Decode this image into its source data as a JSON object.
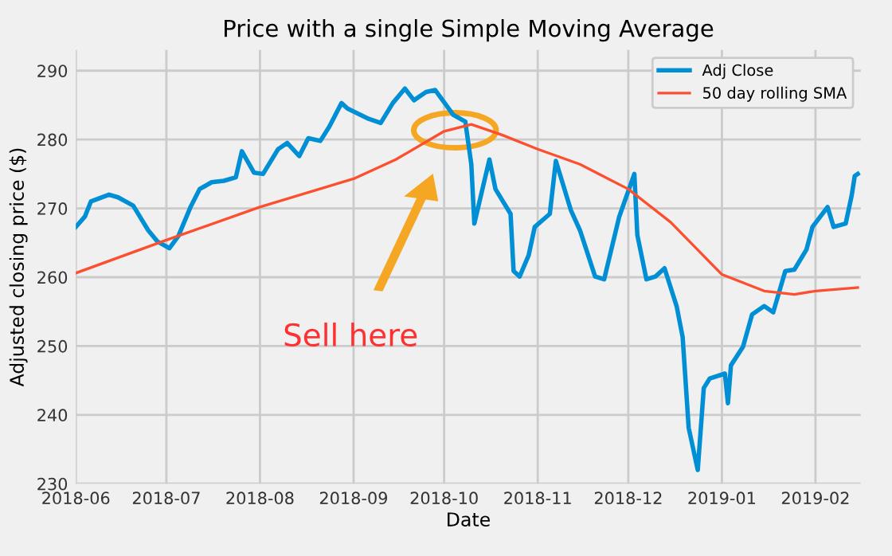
{
  "chart_data": {
    "type": "line",
    "title": "Price with a single Simple Moving Average",
    "xlabel": "Date",
    "ylabel": "Adjusted closing price ($)",
    "xlim": [
      "2018-06-01",
      "2019-02-16"
    ],
    "xticks": [
      {
        "value": "2018-06-01",
        "label": "2018-06"
      },
      {
        "value": "2018-07-01",
        "label": "2018-07"
      },
      {
        "value": "2018-08-01",
        "label": "2018-08"
      },
      {
        "value": "2018-09-01",
        "label": "2018-09"
      },
      {
        "value": "2018-10-01",
        "label": "2018-10"
      },
      {
        "value": "2018-11-01",
        "label": "2018-11"
      },
      {
        "value": "2018-12-01",
        "label": "2018-12"
      },
      {
        "value": "2019-01-01",
        "label": "2019-01"
      },
      {
        "value": "2019-02-01",
        "label": "2019-02"
      }
    ],
    "ylim": [
      230,
      293
    ],
    "yticks": [
      230,
      240,
      250,
      260,
      270,
      280,
      290
    ],
    "grid": true,
    "legend": "top right",
    "annotations": [
      "Sell here"
    ],
    "series": [
      {
        "name": "Adj Close",
        "color": "#008fd5",
        "x": [
          "2018-06-01",
          "2018-06-04",
          "2018-06-06",
          "2018-06-12",
          "2018-06-15",
          "2018-06-20",
          "2018-06-25",
          "2018-06-28",
          "2018-07-02",
          "2018-07-05",
          "2018-07-09",
          "2018-07-12",
          "2018-07-16",
          "2018-07-20",
          "2018-07-24",
          "2018-07-26",
          "2018-07-30",
          "2018-08-02",
          "2018-08-07",
          "2018-08-10",
          "2018-08-14",
          "2018-08-17",
          "2018-08-21",
          "2018-08-24",
          "2018-08-28",
          "2018-08-30",
          "2018-09-06",
          "2018-09-10",
          "2018-09-14",
          "2018-09-18",
          "2018-09-21",
          "2018-09-25",
          "2018-09-28",
          "2018-10-02",
          "2018-10-04",
          "2018-10-08",
          "2018-10-10",
          "2018-10-11",
          "2018-10-16",
          "2018-10-18",
          "2018-10-23",
          "2018-10-24",
          "2018-10-26",
          "2018-10-29",
          "2018-10-31",
          "2018-11-05",
          "2018-11-07",
          "2018-11-12",
          "2018-11-15",
          "2018-11-20",
          "2018-11-23",
          "2018-11-28",
          "2018-12-03",
          "2018-12-04",
          "2018-12-07",
          "2018-12-10",
          "2018-12-13",
          "2018-12-17",
          "2018-12-19",
          "2018-12-21",
          "2018-12-24",
          "2018-12-26",
          "2018-12-28",
          "2019-01-02",
          "2019-01-03",
          "2019-01-04",
          "2019-01-08",
          "2019-01-11",
          "2019-01-15",
          "2019-01-18",
          "2019-01-22",
          "2019-01-25",
          "2019-01-29",
          "2019-01-31",
          "2019-02-05",
          "2019-02-07",
          "2019-02-11",
          "2019-02-13",
          "2019-02-14",
          "2019-02-15"
        ],
        "values": [
          267.3,
          268.8,
          271,
          272,
          271.6,
          270.4,
          266.8,
          265.2,
          264.2,
          266,
          270.2,
          272.8,
          273.8,
          274,
          274.5,
          278.3,
          275.2,
          275,
          278.6,
          279.5,
          277.6,
          280.2,
          279.8,
          281.9,
          285.3,
          284.5,
          283,
          282.4,
          285.3,
          287.4,
          285.7,
          286.9,
          287.2,
          284.8,
          283.6,
          282.6,
          276.4,
          267.8,
          277.1,
          272.8,
          269.2,
          260.9,
          260.1,
          263.2,
          267.3,
          269.2,
          276.9,
          269.7,
          266.8,
          260.1,
          259.7,
          268.8,
          275,
          266.1,
          259.7,
          260.1,
          261.3,
          255.8,
          251.3,
          238.1,
          232,
          243.9,
          245.3,
          246,
          241.7,
          247.2,
          249.9,
          254.6,
          255.8,
          254.9,
          260.9,
          261.1,
          264,
          267.3,
          270.2,
          267.3,
          267.8,
          271.9,
          274.7,
          275
        ]
      },
      {
        "name": "50 day rolling SMA",
        "color": "#fc4f30",
        "x": [
          "2018-06-01",
          "2018-07-01",
          "2018-08-01",
          "2018-09-01",
          "2018-09-15",
          "2018-10-01",
          "2018-10-10",
          "2018-10-20",
          "2018-11-01",
          "2018-11-15",
          "2018-12-01",
          "2018-12-15",
          "2019-01-01",
          "2019-01-15",
          "2019-01-25",
          "2019-02-01",
          "2019-02-15"
        ],
        "values": [
          260.6,
          265.4,
          270.2,
          274.3,
          277.1,
          281.2,
          282.2,
          280.7,
          278.6,
          276.4,
          272.8,
          268,
          260.4,
          258,
          257.5,
          258,
          258.5
        ]
      }
    ]
  }
}
